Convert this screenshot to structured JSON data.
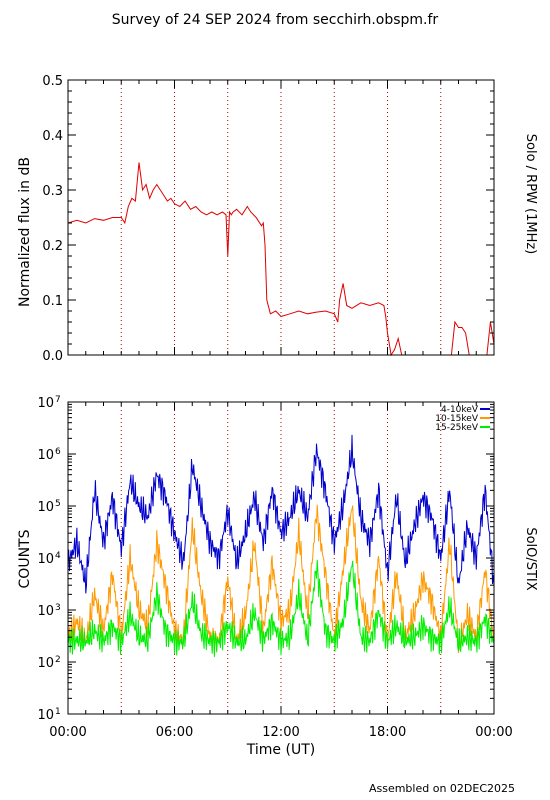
{
  "header": {
    "title": "Survey of 24 SEP 2024 from secchirh.obspm.fr"
  },
  "footer": {
    "assembled": "Assembled on 02DEC2025"
  },
  "chart_data": [
    {
      "type": "line",
      "ylabel": "Normalized flux in dB",
      "right_label": "Solo / RPW (1MHz)",
      "ylim": [
        0.0,
        0.5
      ],
      "yticks": [
        0.0,
        0.1,
        0.2,
        0.3,
        0.4,
        0.5
      ],
      "ytick_labels": [
        "0.0",
        "0.1",
        "0.2",
        "0.3",
        "0.4",
        "0.5"
      ],
      "xlim_hours": [
        0,
        24
      ],
      "vertical_guides_hours": [
        3,
        6,
        9,
        12,
        15,
        18,
        21
      ],
      "series": [
        {
          "color": "#e00000",
          "x": [
            0,
            0.5,
            1,
            1.5,
            2,
            2.5,
            3,
            3.2,
            3.4,
            3.6,
            3.8,
            4.0,
            4.2,
            4.4,
            4.6,
            4.8,
            5.0,
            5.2,
            5.4,
            5.6,
            5.8,
            6.0,
            6.3,
            6.6,
            6.9,
            7.2,
            7.5,
            7.8,
            8.1,
            8.4,
            8.7,
            8.9,
            9.0,
            9.1,
            9.2,
            9.3,
            9.5,
            9.8,
            10.1,
            10.3,
            10.6,
            10.9,
            11.0,
            11.1,
            11.2,
            11.4,
            11.7,
            12.0,
            12.5,
            13.0,
            13.5,
            14.0,
            14.5,
            15.0,
            15.2,
            15.3,
            15.5,
            15.7,
            16.0,
            16.5,
            17.0,
            17.5,
            17.8,
            17.9,
            18.0,
            18.2,
            18.4,
            18.6,
            18.8,
            19.0,
            19.5,
            20.0,
            20.5,
            21.0,
            21.4,
            21.6,
            21.8,
            22.0,
            22.2,
            22.4,
            22.6,
            23.0,
            23.4,
            23.6,
            23.8,
            24.0
          ],
          "y": [
            0.24,
            0.245,
            0.24,
            0.248,
            0.245,
            0.25,
            0.25,
            0.24,
            0.27,
            0.285,
            0.28,
            0.35,
            0.3,
            0.31,
            0.285,
            0.3,
            0.31,
            0.3,
            0.29,
            0.28,
            0.285,
            0.275,
            0.27,
            0.28,
            0.265,
            0.27,
            0.26,
            0.255,
            0.26,
            0.255,
            0.26,
            0.255,
            0.18,
            0.26,
            0.255,
            0.26,
            0.265,
            0.255,
            0.27,
            0.26,
            0.25,
            0.235,
            0.24,
            0.2,
            0.1,
            0.075,
            0.08,
            0.07,
            0.075,
            0.08,
            0.075,
            0.078,
            0.08,
            0.075,
            0.06,
            0.1,
            0.13,
            0.09,
            0.085,
            0.095,
            0.09,
            0.095,
            0.09,
            0.07,
            0.04,
            0.0,
            0.01,
            0.03,
            0.0,
            0.0,
            0.0,
            0.0,
            0.0,
            0.0,
            0.0,
            0.0,
            0.06,
            0.05,
            0.05,
            0.04,
            0.0,
            0.0,
            0.0,
            0.0,
            0.06,
            0.02
          ]
        }
      ]
    },
    {
      "type": "line",
      "ylabel": "COUNTS",
      "right_label": "SolO/STIX",
      "xlabel": "Time (UT)",
      "yscale": "log",
      "ylim": [
        10,
        10000000
      ],
      "ytick_labels": [
        "10^1",
        "10^2",
        "10^3",
        "10^4",
        "10^5",
        "10^6",
        "10^7"
      ],
      "xlim_hours": [
        0,
        24
      ],
      "xtick_labels": [
        "00:00",
        "06:00",
        "12:00",
        "18:00",
        "00:00"
      ],
      "vertical_guides_hours": [
        3,
        6,
        9,
        12,
        15,
        18,
        21
      ],
      "legend_position": "top-right",
      "series": [
        {
          "name": "4-10keV",
          "color": "#0000cc",
          "x": [
            0,
            0.5,
            1.0,
            1.5,
            2.0,
            2.5,
            3.0,
            3.5,
            4.0,
            4.5,
            5.0,
            5.5,
            6.0,
            6.5,
            7.0,
            7.5,
            8.0,
            8.5,
            9.0,
            9.5,
            10.0,
            10.5,
            11.0,
            11.5,
            12.0,
            12.5,
            13.0,
            13.5,
            14.0,
            14.5,
            15.0,
            15.5,
            16.0,
            16.5,
            17.0,
            17.5,
            18.0,
            18.5,
            19.0,
            19.5,
            20.0,
            20.5,
            21.0,
            21.5,
            22.0,
            22.5,
            23.0,
            23.5,
            24.0
          ],
          "y": [
            8000,
            20000,
            3000,
            200000,
            20000,
            150000,
            15000,
            300000,
            100000,
            60000,
            400000,
            150000,
            30000,
            8000,
            600000,
            100000,
            20000,
            10000,
            80000,
            8000,
            30000,
            150000,
            20000,
            200000,
            30000,
            60000,
            200000,
            60000,
            1200000,
            200000,
            20000,
            100000,
            1200000,
            60000,
            20000,
            200000,
            5000,
            150000,
            8000,
            40000,
            150000,
            60000,
            10000,
            200000,
            3000,
            40000,
            10000,
            200000,
            3000
          ]
        },
        {
          "name": "10-15keV",
          "color": "#ff9900",
          "x": [
            0,
            0.5,
            1.0,
            1.5,
            2.0,
            2.5,
            3.0,
            3.5,
            4.0,
            4.5,
            5.0,
            5.5,
            6.0,
            6.5,
            7.0,
            7.5,
            8.0,
            8.5,
            9.0,
            9.5,
            10.0,
            10.5,
            11.0,
            11.5,
            12.0,
            12.5,
            13.0,
            13.5,
            14.0,
            14.5,
            15.0,
            15.5,
            16.0,
            16.5,
            17.0,
            17.5,
            18.0,
            18.5,
            19.0,
            19.5,
            20.0,
            20.5,
            21.0,
            21.5,
            22.0,
            22.5,
            23.0,
            23.5,
            24.0
          ],
          "y": [
            300,
            600,
            250,
            2000,
            400,
            5000,
            300,
            10000,
            1000,
            500,
            20000,
            3000,
            400,
            250,
            40000,
            2000,
            300,
            250,
            4000,
            250,
            800,
            20000,
            400,
            8000,
            600,
            1000,
            30000,
            800,
            80000,
            5000,
            300,
            6000,
            100000,
            1500,
            400,
            10000,
            250,
            5000,
            300,
            800,
            4000,
            1500,
            300,
            20000,
            200,
            800,
            300,
            6000,
            250
          ]
        },
        {
          "name": "15-25keV",
          "color": "#00ee00",
          "x": [
            0,
            0.5,
            1.0,
            1.5,
            2.0,
            2.5,
            3.0,
            3.5,
            4.0,
            4.5,
            5.0,
            5.5,
            6.0,
            6.5,
            7.0,
            7.5,
            8.0,
            8.5,
            9.0,
            9.5,
            10.0,
            10.5,
            11.0,
            11.5,
            12.0,
            12.5,
            13.0,
            13.5,
            14.0,
            14.5,
            15.0,
            15.5,
            16.0,
            16.5,
            17.0,
            17.5,
            18.0,
            18.5,
            19.0,
            19.5,
            20.0,
            20.5,
            21.0,
            21.5,
            22.0,
            22.5,
            23.0,
            23.5,
            24.0
          ],
          "y": [
            250,
            260,
            240,
            400,
            250,
            500,
            240,
            800,
            300,
            260,
            2000,
            400,
            250,
            240,
            1500,
            350,
            250,
            240,
            500,
            240,
            260,
            900,
            260,
            600,
            250,
            300,
            2000,
            260,
            7000,
            400,
            250,
            600,
            8000,
            300,
            250,
            900,
            240,
            500,
            250,
            300,
            500,
            300,
            240,
            1200,
            220,
            300,
            240,
            700,
            240
          ]
        }
      ]
    }
  ]
}
